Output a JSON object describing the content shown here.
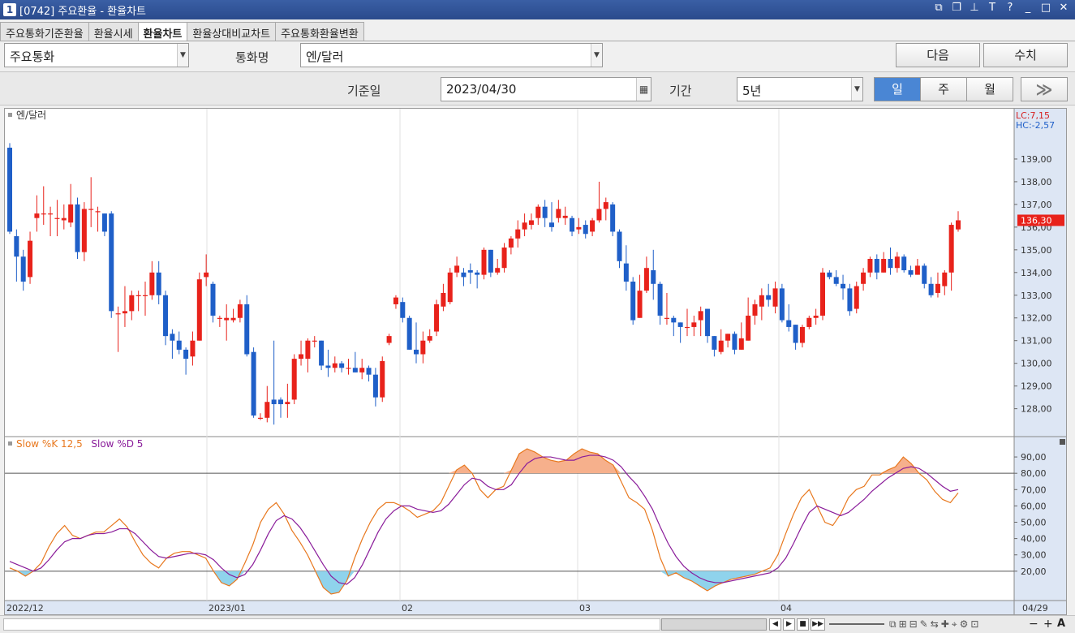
{
  "window": {
    "number": "1",
    "title": "[0742] 주요환율 - 환율차트"
  },
  "tabs": [
    "주요통화기준환율",
    "환율시세",
    "환율차트",
    "환율상대비교차트",
    "주요통화환율변환"
  ],
  "active_tab": 2,
  "controls": {
    "group_value": "주요통화",
    "currency_label": "통화명",
    "currency_value": "엔/달러",
    "next_button": "다음",
    "values_button": "수치",
    "base_date_label": "기준일",
    "base_date_value": "2023/04/30",
    "period_label": "기간",
    "period_value": "5년",
    "interval_day": "일",
    "interval_week": "주",
    "interval_month": "월",
    "expand_button": "≫"
  },
  "chart_data": [
    {
      "type": "candlestick",
      "legend": "엔/달러",
      "x_labels": [
        "2022/12",
        "2023/01",
        "02",
        "03",
        "04",
        "04/29"
      ],
      "y_ticks": [
        "139,00",
        "138,00",
        "137,00",
        "136,00",
        "135,00",
        "134,00",
        "133,00",
        "132,00",
        "131,00",
        "130,00",
        "129,00",
        "128,00"
      ],
      "ylim": [
        127.2,
        140.5
      ],
      "lc_label": "LC:7,15",
      "hc_label": "HC:-2,57",
      "last_price": "136,30",
      "candles": [
        [
          139.5,
          135.8,
          139.7,
          135.7
        ],
        [
          135.6,
          134.7,
          135.9,
          133.6
        ],
        [
          134.7,
          133.6,
          135.0,
          133.2
        ],
        [
          133.8,
          135.4,
          135.8,
          133.5
        ],
        [
          136.4,
          136.6,
          137.4,
          135.8
        ],
        [
          136.6,
          136.6,
          137.8,
          136.1
        ],
        [
          136.6,
          136.6,
          136.9,
          135.6
        ],
        [
          136.4,
          136.4,
          137.2,
          135.6
        ],
        [
          136.3,
          136.4,
          137.0,
          135.9
        ],
        [
          136.2,
          137.0,
          137.9,
          136.0
        ],
        [
          137.0,
          134.9,
          137.3,
          134.6
        ],
        [
          134.9,
          136.8,
          137.1,
          134.5
        ],
        [
          136.8,
          136.8,
          138.2,
          136.0
        ],
        [
          136.7,
          136.7,
          136.9,
          135.8
        ],
        [
          136.6,
          135.8,
          136.6,
          135.6
        ],
        [
          136.6,
          132.3,
          136.7,
          132.0
        ],
        [
          132.2,
          132.2,
          132.5,
          130.5
        ],
        [
          132.2,
          132.3,
          133.4,
          131.6
        ],
        [
          132.3,
          133.0,
          133.2,
          131.9
        ],
        [
          133.0,
          133.0,
          133.2,
          132.3
        ],
        [
          133.0,
          133.0,
          133.6,
          132.1
        ],
        [
          133.0,
          134.0,
          134.5,
          132.8
        ],
        [
          134.0,
          133.0,
          134.5,
          132.6
        ],
        [
          133.0,
          131.2,
          133.2,
          130.8
        ],
        [
          131.3,
          131.0,
          131.5,
          130.2
        ],
        [
          131.0,
          130.6,
          131.4,
          130.4
        ],
        [
          130.6,
          130.2,
          130.7,
          129.5
        ],
        [
          130.3,
          131.0,
          131.4,
          129.9
        ],
        [
          131.0,
          133.7,
          134.0,
          131.0
        ],
        [
          133.8,
          134.0,
          134.8,
          133.4
        ],
        [
          133.5,
          132.1,
          133.6,
          131.8
        ],
        [
          132.0,
          132.0,
          132.1,
          131.6
        ],
        [
          131.9,
          132.0,
          132.6,
          131.0
        ],
        [
          131.9,
          132.0,
          132.4,
          131.8
        ],
        [
          132.0,
          132.6,
          132.8,
          131.8
        ],
        [
          132.6,
          130.4,
          133.0,
          130.3
        ],
        [
          130.5,
          127.7,
          130.7,
          127.6
        ],
        [
          127.6,
          127.6,
          127.8,
          127.5
        ],
        [
          127.6,
          128.3,
          129.0,
          127.4
        ],
        [
          128.4,
          128.2,
          131.0,
          127.3
        ],
        [
          128.4,
          128.2,
          128.5,
          127.6
        ],
        [
          128.2,
          128.3,
          129.1,
          127.6
        ],
        [
          128.4,
          130.2,
          130.4,
          128.2
        ],
        [
          130.2,
          130.4,
          131.0,
          129.9
        ],
        [
          130.2,
          131.0,
          131.1,
          129.6
        ],
        [
          131.0,
          131.0,
          131.2,
          130.7
        ],
        [
          131.0,
          129.9,
          131.0,
          129.7
        ],
        [
          129.9,
          129.8,
          130.6,
          129.4
        ],
        [
          129.8,
          130.0,
          130.3,
          129.6
        ],
        [
          130.0,
          129.8,
          130.1,
          129.6
        ],
        [
          129.8,
          129.8,
          130.2,
          129.5
        ],
        [
          129.8,
          129.6,
          130.5,
          129.6
        ],
        [
          129.6,
          129.8,
          130.2,
          129.3
        ],
        [
          129.8,
          129.5,
          129.9,
          129.2
        ],
        [
          129.5,
          128.5,
          129.8,
          128.1
        ],
        [
          128.5,
          130.1,
          130.3,
          128.3
        ],
        [
          130.9,
          131.2,
          131.3,
          130.8
        ],
        [
          132.6,
          132.9,
          133.0,
          132.4
        ],
        [
          132.7,
          132.0,
          132.9,
          131.8
        ],
        [
          132.0,
          130.6,
          132.1,
          130.6
        ],
        [
          130.6,
          130.4,
          131.8,
          130.0
        ],
        [
          130.4,
          131.0,
          131.4,
          130.0
        ],
        [
          131.0,
          131.2,
          131.5,
          130.9
        ],
        [
          131.4,
          132.6,
          132.8,
          131.2
        ],
        [
          132.5,
          133.1,
          133.5,
          132.3
        ],
        [
          132.7,
          134.0,
          134.2,
          132.6
        ],
        [
          134.0,
          134.3,
          134.7,
          133.8
        ],
        [
          134.0,
          133.8,
          134.2,
          133.4
        ],
        [
          134.1,
          134.0,
          134.4,
          133.5
        ],
        [
          134.0,
          133.9,
          134.1,
          133.3
        ],
        [
          133.9,
          135.0,
          135.1,
          133.7
        ],
        [
          135.0,
          134.0,
          135.0,
          133.8
        ],
        [
          134.0,
          134.2,
          134.6,
          133.9
        ],
        [
          134.2,
          135.1,
          135.3,
          134.0
        ],
        [
          135.1,
          135.5,
          135.6,
          134.8
        ],
        [
          135.5,
          135.9,
          136.3,
          135.1
        ],
        [
          135.9,
          136.2,
          136.6,
          135.6
        ],
        [
          136.1,
          136.3,
          136.6,
          135.9
        ],
        [
          136.4,
          136.9,
          137.0,
          136.1
        ],
        [
          136.9,
          136.4,
          137.2,
          136.0
        ],
        [
          136.2,
          136.0,
          137.1,
          135.8
        ],
        [
          136.4,
          136.8,
          137.2,
          136.2
        ],
        [
          136.4,
          136.5,
          136.9,
          136.1
        ],
        [
          136.4,
          135.8,
          136.5,
          135.6
        ],
        [
          135.9,
          136.0,
          136.4,
          135.7
        ],
        [
          136.1,
          135.7,
          136.3,
          135.5
        ],
        [
          135.8,
          136.3,
          136.4,
          135.6
        ],
        [
          136.3,
          136.8,
          138.0,
          136.2
        ],
        [
          136.8,
          137.1,
          137.3,
          136.3
        ],
        [
          137.0,
          135.8,
          137.1,
          135.6
        ],
        [
          135.8,
          134.5,
          135.9,
          134.2
        ],
        [
          134.4,
          133.6,
          135.2,
          133.2
        ],
        [
          133.6,
          131.9,
          133.8,
          131.7
        ],
        [
          132.0,
          133.2,
          133.9,
          132.0
        ],
        [
          133.2,
          134.2,
          134.7,
          133.1
        ],
        [
          134.1,
          133.5,
          135.0,
          132.8
        ],
        [
          133.5,
          132.1,
          133.6,
          131.7
        ],
        [
          132.0,
          132.0,
          133.1,
          131.7
        ],
        [
          132.0,
          131.8,
          132.1,
          131.2
        ],
        [
          131.8,
          131.6,
          131.8,
          130.9
        ],
        [
          131.6,
          131.6,
          132.4,
          131.2
        ],
        [
          131.6,
          131.8,
          132.1,
          131.2
        ],
        [
          131.9,
          132.3,
          132.5,
          131.2
        ],
        [
          132.4,
          131.2,
          132.4,
          130.9
        ],
        [
          131.2,
          130.6,
          131.2,
          130.3
        ],
        [
          130.5,
          131.0,
          131.5,
          130.4
        ],
        [
          131.0,
          131.3,
          131.3,
          130.7
        ],
        [
          131.3,
          130.6,
          131.4,
          130.4
        ],
        [
          130.6,
          131.1,
          131.8,
          130.6
        ],
        [
          131.0,
          132.1,
          132.9,
          131.0
        ],
        [
          132.1,
          132.6,
          132.8,
          131.7
        ],
        [
          132.5,
          133.0,
          133.3,
          131.9
        ],
        [
          133.0,
          132.8,
          133.5,
          132.5
        ],
        [
          132.5,
          133.3,
          133.6,
          132.2
        ],
        [
          133.3,
          131.9,
          133.5,
          131.8
        ],
        [
          131.9,
          131.6,
          132.6,
          131.4
        ],
        [
          131.7,
          130.9,
          131.7,
          130.6
        ],
        [
          130.9,
          131.6,
          131.7,
          130.7
        ],
        [
          131.6,
          132.0,
          132.1,
          131.5
        ],
        [
          132.0,
          132.1,
          132.4,
          131.7
        ],
        [
          132.1,
          134.0,
          134.2,
          131.9
        ],
        [
          134.0,
          133.8,
          134.1,
          133.7
        ],
        [
          133.8,
          133.5,
          134.1,
          133.4
        ],
        [
          133.5,
          133.3,
          133.9,
          132.8
        ],
        [
          133.3,
          132.3,
          133.5,
          132.1
        ],
        [
          132.4,
          133.4,
          133.6,
          132.2
        ],
        [
          133.5,
          134.0,
          134.2,
          133.2
        ],
        [
          134.0,
          134.6,
          134.7,
          133.8
        ],
        [
          134.6,
          134.0,
          134.8,
          133.7
        ],
        [
          134.0,
          134.6,
          134.9,
          134.0
        ],
        [
          134.6,
          134.2,
          135.1,
          133.9
        ],
        [
          134.2,
          134.7,
          134.9,
          134.0
        ],
        [
          134.7,
          134.1,
          134.8,
          134.0
        ],
        [
          134.1,
          133.9,
          134.3,
          133.8
        ],
        [
          133.9,
          134.3,
          134.6,
          133.9
        ],
        [
          134.3,
          133.5,
          134.4,
          133.3
        ],
        [
          133.5,
          133.0,
          133.8,
          132.9
        ],
        [
          133.1,
          133.5,
          134.0,
          132.9
        ],
        [
          133.4,
          134.0,
          134.1,
          133.0
        ],
        [
          134.0,
          136.1,
          136.2,
          133.2
        ],
        [
          135.9,
          136.3,
          136.7,
          135.8
        ]
      ]
    },
    {
      "type": "line",
      "legend_k": "Slow %K 12,5",
      "legend_d": "Slow %D 5",
      "y_ticks": [
        "90,00",
        "80,00",
        "70,00",
        "60,00",
        "50,00",
        "40,00",
        "30,00",
        "20,00"
      ],
      "ylim": [
        5,
        97
      ],
      "overbought": 80,
      "oversold": 20,
      "series": [
        {
          "name": "Slow %K 12,5",
          "color": "#e8781e",
          "values": [
            22,
            20,
            17,
            20,
            25,
            35,
            43,
            48,
            42,
            40,
            42,
            44,
            44,
            48,
            52,
            47,
            38,
            30,
            25,
            22,
            28,
            31,
            32,
            32,
            30,
            28,
            20,
            13,
            11,
            15,
            25,
            36,
            50,
            58,
            62,
            55,
            45,
            38,
            30,
            20,
            10,
            6,
            7,
            14,
            28,
            40,
            50,
            58,
            62,
            62,
            60,
            57,
            53,
            55,
            57,
            62,
            72,
            82,
            85,
            80,
            70,
            65,
            70,
            72,
            82,
            92,
            95,
            93,
            90,
            88,
            87,
            88,
            92,
            95,
            93,
            92,
            88,
            85,
            75,
            65,
            62,
            58,
            45,
            28,
            17,
            19,
            16,
            14,
            11,
            8,
            11,
            13,
            15,
            16,
            17,
            18,
            20,
            22,
            30,
            43,
            55,
            65,
            70,
            60,
            50,
            48,
            55,
            65,
            70,
            72,
            79,
            79,
            82,
            84,
            90,
            86,
            80,
            76,
            69,
            64,
            62,
            68
          ]
        },
        {
          "name": "Slow %D 5",
          "color": "#8a1c9a",
          "values": [
            26,
            24,
            22,
            20,
            22,
            27,
            33,
            38,
            40,
            40,
            42,
            43,
            43,
            44,
            46,
            46,
            43,
            38,
            33,
            29,
            28,
            29,
            30,
            31,
            31,
            30,
            27,
            22,
            18,
            16,
            18,
            24,
            33,
            43,
            51,
            54,
            52,
            47,
            40,
            32,
            24,
            17,
            13,
            12,
            16,
            24,
            34,
            44,
            52,
            57,
            60,
            60,
            58,
            57,
            56,
            57,
            61,
            67,
            73,
            77,
            76,
            72,
            70,
            70,
            73,
            80,
            86,
            89,
            90,
            90,
            89,
            88,
            88,
            90,
            91,
            91,
            90,
            88,
            84,
            78,
            73,
            66,
            58,
            47,
            37,
            29,
            23,
            19,
            16,
            14,
            13,
            13,
            14,
            15,
            16,
            17,
            18,
            19,
            22,
            28,
            37,
            47,
            56,
            60,
            58,
            56,
            54,
            56,
            60,
            64,
            69,
            73,
            77,
            80,
            83,
            84,
            83,
            80,
            76,
            72,
            69,
            70
          ]
        }
      ]
    }
  ],
  "bottom": {
    "nav_prev": "◀",
    "nav_next": "▶",
    "nav_stop": "■",
    "nav_end": "▶▶",
    "zoom_out": "−",
    "zoom_in": "+",
    "font_btn": "A"
  }
}
